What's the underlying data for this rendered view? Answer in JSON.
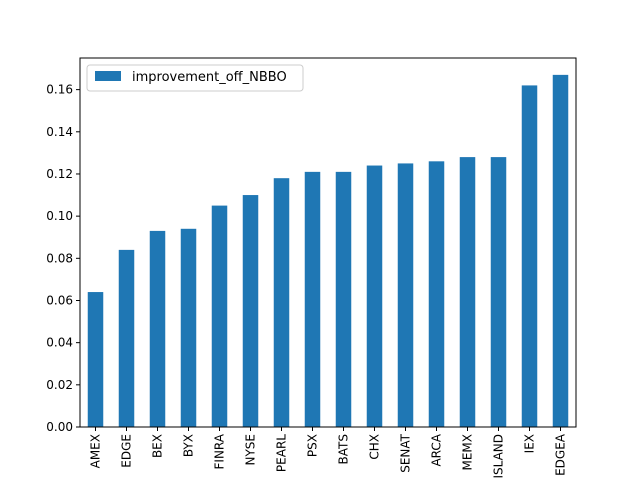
{
  "chart_data": {
    "type": "bar",
    "categories": [
      "AMEX",
      "EDGE",
      "BEX",
      "BYX",
      "FINRA",
      "NYSE",
      "PEARL",
      "PSX",
      "BATS",
      "CHX",
      "SENAT",
      "ARCA",
      "MEMX",
      "ISLAND",
      "IEX",
      "EDGEA"
    ],
    "series": [
      {
        "name": "improvement_off_NBBO",
        "values": [
          0.064,
          0.084,
          0.093,
          0.094,
          0.105,
          0.11,
          0.118,
          0.121,
          0.121,
          0.124,
          0.125,
          0.126,
          0.128,
          0.128,
          0.162,
          0.167
        ]
      }
    ],
    "title": "",
    "xlabel": "",
    "ylabel": "",
    "ylim": [
      0,
      0.175
    ],
    "yticks": [
      "0.00",
      "0.02",
      "0.04",
      "0.06",
      "0.08",
      "0.10",
      "0.12",
      "0.14",
      "0.16"
    ],
    "legend_position": "upper-left",
    "grid": false,
    "colors": {
      "bar": "#1f77b4",
      "axis": "#000000"
    }
  }
}
